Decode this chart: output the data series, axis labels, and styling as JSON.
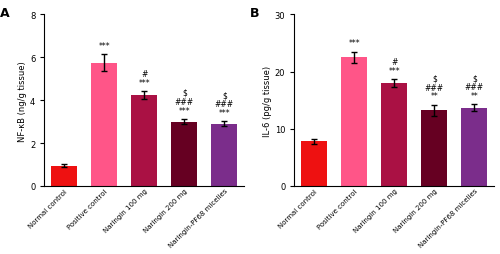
{
  "panel_A": {
    "title": "A",
    "ylabel": "NF-κB (ng/g tissue)",
    "ylim": [
      0,
      8
    ],
    "yticks": [
      0,
      2,
      4,
      6,
      8
    ],
    "categories": [
      "Normal control",
      "Positive control",
      "Naringin 100 mg",
      "Naringin 200 mg",
      "Naringin-PF68 micelles"
    ],
    "values": [
      0.95,
      5.75,
      4.25,
      3.0,
      2.9
    ],
    "errors": [
      0.08,
      0.38,
      0.18,
      0.12,
      0.12
    ],
    "bar_colors": [
      "#EE1111",
      "#FF5588",
      "#AA1144",
      "#660022",
      "#7B2D8B"
    ],
    "annotations": [
      [],
      [
        "***"
      ],
      [
        "#",
        "***"
      ],
      [
        "$",
        "###",
        "***"
      ],
      [
        "$",
        "###",
        "***"
      ]
    ]
  },
  "panel_B": {
    "title": "B",
    "ylabel": "IL-6 (pg/g tissue)",
    "ylim": [
      0,
      30
    ],
    "yticks": [
      0,
      10,
      20,
      30
    ],
    "categories": [
      "Normal control",
      "Positive control",
      "Naringin 100 mg",
      "Naringin 200 mg",
      "Naringin-PF68 micelles"
    ],
    "values": [
      7.8,
      22.5,
      18.0,
      13.2,
      13.7
    ],
    "errors": [
      0.5,
      1.0,
      0.7,
      1.0,
      0.6
    ],
    "bar_colors": [
      "#EE1111",
      "#FF5588",
      "#AA1144",
      "#660022",
      "#7B2D8B"
    ],
    "annotations": [
      [],
      [
        "***"
      ],
      [
        "#",
        "***"
      ],
      [
        "$",
        "###",
        "**"
      ],
      [
        "$",
        "###",
        "**"
      ]
    ]
  },
  "fig_width": 5.0,
  "fig_height": 2.55,
  "dpi": 100
}
